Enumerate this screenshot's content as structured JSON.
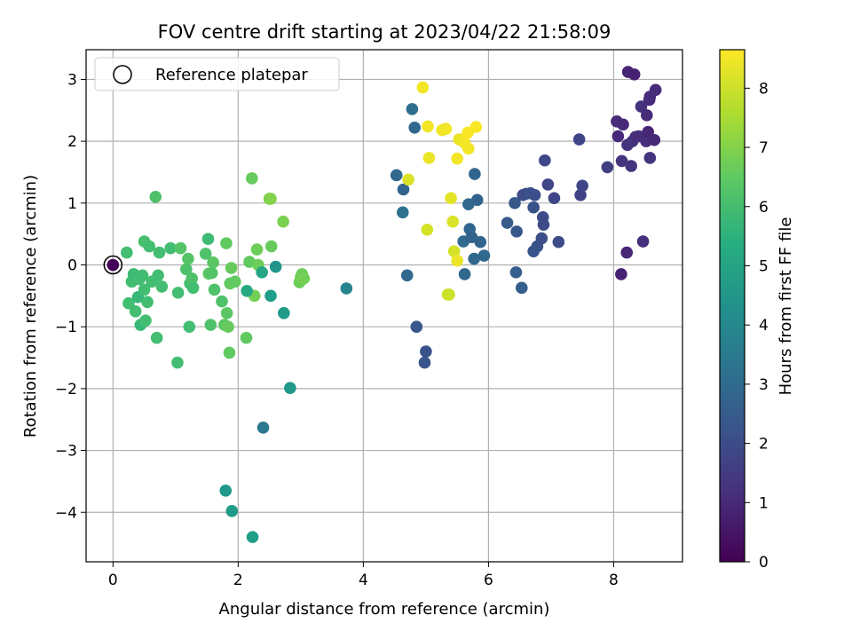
{
  "chart_data": {
    "type": "scatter",
    "title": "FOV centre drift starting at 2023/04/22 21:58:09",
    "xlabel": "Angular distance from reference (arcmin)",
    "ylabel": "Rotation from reference (arcmin)",
    "xlim": [
      -0.43,
      9.1
    ],
    "ylim": [
      -4.8,
      3.48
    ],
    "xticks": [
      0,
      2,
      4,
      6,
      8
    ],
    "yticks": [
      3,
      2,
      1,
      0,
      -1,
      -2,
      -3,
      -4
    ],
    "xtick_labels": [
      "0",
      "2",
      "4",
      "6",
      "8"
    ],
    "ytick_labels": [
      "3",
      "2",
      "1",
      "0",
      "−1",
      "−2",
      "−3",
      "−4"
    ],
    "grid": true,
    "legend": {
      "position": "upper-left",
      "label": "Reference platepar"
    },
    "reference_point": {
      "x": 0,
      "y": 0
    },
    "colorbar": {
      "label": "Hours from first FF file",
      "range": [
        0,
        8.65
      ],
      "ticks": [
        0,
        1,
        2,
        3,
        4,
        5,
        6,
        7,
        8
      ],
      "tick_labels": [
        "0",
        "1",
        "2",
        "3",
        "4",
        "5",
        "6",
        "7",
        "8"
      ],
      "colormap": "viridis"
    },
    "points": [
      {
        "x": 0,
        "y": 0,
        "c": 0.05
      },
      {
        "x": 0.22,
        "y": 0.2,
        "c": 6.0
      },
      {
        "x": 0.25,
        "y": -0.62,
        "c": 6.0
      },
      {
        "x": 0.3,
        "y": -0.27,
        "c": 6.0
      },
      {
        "x": 0.33,
        "y": -0.15,
        "c": 5.9
      },
      {
        "x": 0.36,
        "y": -0.75,
        "c": 6.0
      },
      {
        "x": 0.4,
        "y": -0.52,
        "c": 5.8
      },
      {
        "x": 0.42,
        "y": -0.23,
        "c": 6.0
      },
      {
        "x": 0.44,
        "y": -0.97,
        "c": 5.8
      },
      {
        "x": 0.47,
        "y": -0.17,
        "c": 6.0
      },
      {
        "x": 0.5,
        "y": 0.38,
        "c": 6.1
      },
      {
        "x": 0.5,
        "y": -0.4,
        "c": 6.0
      },
      {
        "x": 0.52,
        "y": -0.9,
        "c": 6.0
      },
      {
        "x": 0.55,
        "y": -0.6,
        "c": 6.0
      },
      {
        "x": 0.58,
        "y": 0.3,
        "c": 6.0
      },
      {
        "x": 0.62,
        "y": -0.27,
        "c": 6.0
      },
      {
        "x": 0.68,
        "y": 1.1,
        "c": 6.2
      },
      {
        "x": 0.7,
        "y": -1.18,
        "c": 6.0
      },
      {
        "x": 0.72,
        "y": -0.17,
        "c": 6.0
      },
      {
        "x": 0.74,
        "y": 0.2,
        "c": 6.0
      },
      {
        "x": 0.78,
        "y": -0.35,
        "c": 6.0
      },
      {
        "x": 0.92,
        "y": 0.27,
        "c": 6.0
      },
      {
        "x": 1.03,
        "y": -1.58,
        "c": 6.0
      },
      {
        "x": 1.04,
        "y": -0.45,
        "c": 6.0
      },
      {
        "x": 1.08,
        "y": 0.27,
        "c": 6.3
      },
      {
        "x": 1.17,
        "y": -0.07,
        "c": 6.2
      },
      {
        "x": 1.2,
        "y": 0.1,
        "c": 6.3
      },
      {
        "x": 1.22,
        "y": -1.0,
        "c": 6.0
      },
      {
        "x": 1.23,
        "y": -0.3,
        "c": 6.1
      },
      {
        "x": 1.26,
        "y": -0.22,
        "c": 6.2
      },
      {
        "x": 1.28,
        "y": -0.37,
        "c": 6.0
      },
      {
        "x": 1.48,
        "y": 0.18,
        "c": 6.2
      },
      {
        "x": 1.52,
        "y": 0.42,
        "c": 5.9
      },
      {
        "x": 1.53,
        "y": -0.14,
        "c": 6.4
      },
      {
        "x": 1.56,
        "y": -0.97,
        "c": 6.2
      },
      {
        "x": 1.58,
        "y": -0.13,
        "c": 6.3
      },
      {
        "x": 1.6,
        "y": 0.04,
        "c": 6.4
      },
      {
        "x": 1.62,
        "y": -0.4,
        "c": 6.2
      },
      {
        "x": 1.74,
        "y": -0.59,
        "c": 6.2
      },
      {
        "x": 1.78,
        "y": -0.97,
        "c": 6.4
      },
      {
        "x": 1.81,
        "y": 0.35,
        "c": 6.5
      },
      {
        "x": 1.82,
        "y": -0.78,
        "c": 6.4
      },
      {
        "x": 1.84,
        "y": -1.0,
        "c": 6.6
      },
      {
        "x": 1.86,
        "y": -1.42,
        "c": 6.5
      },
      {
        "x": 1.87,
        "y": -0.3,
        "c": 6.5
      },
      {
        "x": 1.89,
        "y": -0.05,
        "c": 6.6
      },
      {
        "x": 1.95,
        "y": -0.27,
        "c": 6.5
      },
      {
        "x": 2.13,
        "y": -1.18,
        "c": 6.5
      },
      {
        "x": 2.18,
        "y": 0.05,
        "c": 6.5
      },
      {
        "x": 2.22,
        "y": 1.4,
        "c": 6.6
      },
      {
        "x": 2.26,
        "y": -0.5,
        "c": 6.8
      },
      {
        "x": 2.3,
        "y": 0.25,
        "c": 6.7
      },
      {
        "x": 2.32,
        "y": 0.0,
        "c": 6.7
      },
      {
        "x": 2.5,
        "y": 1.07,
        "c": 6.9
      },
      {
        "x": 2.52,
        "y": 1.07,
        "c": 7.0
      },
      {
        "x": 2.53,
        "y": 0.3,
        "c": 6.6
      },
      {
        "x": 2.72,
        "y": 0.7,
        "c": 6.9
      },
      {
        "x": 2.98,
        "y": -0.28,
        "c": 6.7
      },
      {
        "x": 3.0,
        "y": -0.2,
        "c": 6.8
      },
      {
        "x": 3.02,
        "y": -0.15,
        "c": 6.7
      },
      {
        "x": 3.05,
        "y": -0.22,
        "c": 6.8
      },
      {
        "x": 2.14,
        "y": -0.42,
        "c": 5.2
      },
      {
        "x": 2.38,
        "y": -0.12,
        "c": 5.1
      },
      {
        "x": 2.52,
        "y": -0.5,
        "c": 4.8
      },
      {
        "x": 2.6,
        "y": -0.03,
        "c": 4.5
      },
      {
        "x": 2.73,
        "y": -0.78,
        "c": 4.7
      },
      {
        "x": 2.83,
        "y": -1.99,
        "c": 4.6
      },
      {
        "x": 1.8,
        "y": -3.65,
        "c": 4.6
      },
      {
        "x": 1.9,
        "y": -3.98,
        "c": 4.7
      },
      {
        "x": 2.23,
        "y": -4.4,
        "c": 4.8
      },
      {
        "x": 2.4,
        "y": -2.63,
        "c": 3.5
      },
      {
        "x": 3.73,
        "y": -0.38,
        "c": 3.9
      },
      {
        "x": 4.53,
        "y": 1.45,
        "c": 2.9
      },
      {
        "x": 4.63,
        "y": 0.85,
        "c": 3.2
      },
      {
        "x": 4.64,
        "y": 1.22,
        "c": 2.8
      },
      {
        "x": 4.7,
        "y": -0.17,
        "c": 2.9
      },
      {
        "x": 4.78,
        "y": 2.52,
        "c": 3.1
      },
      {
        "x": 4.82,
        "y": 2.22,
        "c": 2.9
      },
      {
        "x": 4.85,
        "y": -1.0,
        "c": 2.4
      },
      {
        "x": 4.98,
        "y": -1.58,
        "c": 2.3
      },
      {
        "x": 5.0,
        "y": -1.4,
        "c": 2.2
      },
      {
        "x": 5.62,
        "y": -0.15,
        "c": 2.9
      },
      {
        "x": 5.6,
        "y": 0.38,
        "c": 3.0
      },
      {
        "x": 5.68,
        "y": 0.98,
        "c": 2.9
      },
      {
        "x": 5.7,
        "y": 0.58,
        "c": 2.8
      },
      {
        "x": 5.73,
        "y": 0.45,
        "c": 2.7
      },
      {
        "x": 5.77,
        "y": 0.1,
        "c": 2.9
      },
      {
        "x": 5.78,
        "y": 1.47,
        "c": 2.8
      },
      {
        "x": 5.82,
        "y": 1.05,
        "c": 2.7
      },
      {
        "x": 5.87,
        "y": 0.37,
        "c": 2.8
      },
      {
        "x": 5.93,
        "y": 0.15,
        "c": 2.9
      },
      {
        "x": 6.3,
        "y": 0.68,
        "c": 2.5
      },
      {
        "x": 6.42,
        "y": 1.0,
        "c": 2.4
      },
      {
        "x": 6.44,
        "y": -0.12,
        "c": 2.6
      },
      {
        "x": 6.45,
        "y": 0.54,
        "c": 2.4
      },
      {
        "x": 6.53,
        "y": -0.37,
        "c": 2.6
      },
      {
        "x": 6.55,
        "y": 1.13,
        "c": 2.1
      },
      {
        "x": 6.6,
        "y": 1.15,
        "c": 2.0
      },
      {
        "x": 6.67,
        "y": 1.16,
        "c": 2.2
      },
      {
        "x": 6.72,
        "y": 0.93,
        "c": 2.2
      },
      {
        "x": 6.74,
        "y": 1.13,
        "c": 2.1
      },
      {
        "x": 6.72,
        "y": 0.22,
        "c": 2.3
      },
      {
        "x": 6.78,
        "y": 0.3,
        "c": 2.2
      },
      {
        "x": 6.85,
        "y": 0.43,
        "c": 2.1
      },
      {
        "x": 6.87,
        "y": 0.77,
        "c": 2.0
      },
      {
        "x": 6.88,
        "y": 0.65,
        "c": 2.0
      },
      {
        "x": 6.9,
        "y": 1.69,
        "c": 1.9
      },
      {
        "x": 6.95,
        "y": 1.3,
        "c": 1.8
      },
      {
        "x": 7.05,
        "y": 1.08,
        "c": 1.8
      },
      {
        "x": 7.12,
        "y": 0.37,
        "c": 2.0
      },
      {
        "x": 7.45,
        "y": 2.03,
        "c": 1.8
      },
      {
        "x": 7.47,
        "y": 1.13,
        "c": 1.7
      },
      {
        "x": 7.5,
        "y": 1.28,
        "c": 1.8
      },
      {
        "x": 7.9,
        "y": 1.58,
        "c": 1.6
      },
      {
        "x": 8.05,
        "y": 2.32,
        "c": 1.1
      },
      {
        "x": 8.07,
        "y": 2.08,
        "c": 1.0
      },
      {
        "x": 8.12,
        "y": -0.15,
        "c": 0.8
      },
      {
        "x": 8.13,
        "y": 1.68,
        "c": 1.3
      },
      {
        "x": 8.15,
        "y": 2.27,
        "c": 1.0
      },
      {
        "x": 8.21,
        "y": 0.2,
        "c": 0.9
      },
      {
        "x": 8.22,
        "y": 1.94,
        "c": 1.3
      },
      {
        "x": 8.23,
        "y": 3.12,
        "c": 0.9
      },
      {
        "x": 8.28,
        "y": 1.6,
        "c": 1.3
      },
      {
        "x": 8.3,
        "y": 2.0,
        "c": 1.3
      },
      {
        "x": 8.33,
        "y": 3.08,
        "c": 0.8
      },
      {
        "x": 8.35,
        "y": 2.07,
        "c": 1.2
      },
      {
        "x": 8.4,
        "y": 2.08,
        "c": 1.1
      },
      {
        "x": 8.44,
        "y": 2.56,
        "c": 1.3
      },
      {
        "x": 8.47,
        "y": 0.38,
        "c": 1.2
      },
      {
        "x": 8.52,
        "y": 2.0,
        "c": 1.2
      },
      {
        "x": 8.53,
        "y": 2.42,
        "c": 1.1
      },
      {
        "x": 8.55,
        "y": 2.15,
        "c": 0.9
      },
      {
        "x": 8.57,
        "y": 2.67,
        "c": 1.0
      },
      {
        "x": 8.58,
        "y": 2.72,
        "c": 1.1
      },
      {
        "x": 8.58,
        "y": 1.73,
        "c": 1.3
      },
      {
        "x": 8.65,
        "y": 2.02,
        "c": 1.0
      },
      {
        "x": 8.67,
        "y": 2.83,
        "c": 1.1
      },
      {
        "x": 4.72,
        "y": 1.38,
        "c": 8.2
      },
      {
        "x": 4.95,
        "y": 2.87,
        "c": 8.5
      },
      {
        "x": 5.02,
        "y": 0.57,
        "c": 8.1
      },
      {
        "x": 5.03,
        "y": 2.24,
        "c": 8.5
      },
      {
        "x": 5.05,
        "y": 1.73,
        "c": 8.4
      },
      {
        "x": 5.26,
        "y": 2.18,
        "c": 8.5
      },
      {
        "x": 5.32,
        "y": 2.2,
        "c": 8.5
      },
      {
        "x": 5.35,
        "y": -0.48,
        "c": 8.0
      },
      {
        "x": 5.37,
        "y": -0.48,
        "c": 8.0
      },
      {
        "x": 5.4,
        "y": 1.08,
        "c": 8.3
      },
      {
        "x": 5.43,
        "y": 0.7,
        "c": 8.2
      },
      {
        "x": 5.45,
        "y": 0.22,
        "c": 8.1
      },
      {
        "x": 5.5,
        "y": 1.72,
        "c": 8.5
      },
      {
        "x": 5.5,
        "y": 0.07,
        "c": 8.4
      },
      {
        "x": 5.53,
        "y": 2.03,
        "c": 8.4
      },
      {
        "x": 5.62,
        "y": 1.97,
        "c": 8.5
      },
      {
        "x": 5.67,
        "y": 2.14,
        "c": 8.6
      },
      {
        "x": 5.68,
        "y": 1.88,
        "c": 8.5
      },
      {
        "x": 5.8,
        "y": 2.23,
        "c": 8.6
      }
    ]
  }
}
